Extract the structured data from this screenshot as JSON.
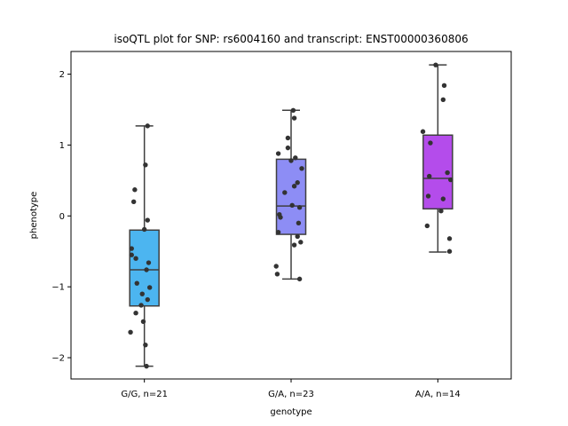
{
  "chart_data": {
    "type": "box",
    "title": "isoQTL plot for SNP: rs6004160 and transcript: ENST00000360806",
    "xlabel": "genotype",
    "ylabel": "phenotype",
    "ylim": [
      -2.3,
      2.32
    ],
    "yticks": [
      -2,
      -1,
      0,
      1,
      2
    ],
    "yticklabels": [
      "−2",
      "−1",
      "0",
      "1",
      "2"
    ],
    "grid": false,
    "categories": [
      "G/G, n=21",
      "G/A, n=23",
      "A/A, n=14"
    ],
    "colors": [
      "#4cb5f0",
      "#8d8df5",
      "#b44ceb"
    ],
    "boxes": [
      {
        "q1": -1.27,
        "median": -0.76,
        "q3": -0.2,
        "whisker_low": -2.12,
        "whisker_high": 1.27
      },
      {
        "q1": -0.26,
        "median": 0.14,
        "q3": 0.8,
        "whisker_low": -0.89,
        "whisker_high": 1.49
      },
      {
        "q1": 0.1,
        "median": 0.53,
        "q3": 1.14,
        "whisker_low": -0.51,
        "whisker_high": 2.13
      }
    ],
    "points": [
      [
        [
          0.03,
          1.27
        ],
        [
          0.01,
          0.72
        ],
        [
          -0.09,
          0.37
        ],
        [
          -0.1,
          0.2
        ],
        [
          0.03,
          -0.06
        ],
        [
          0.0,
          -0.19
        ],
        [
          -0.12,
          -0.46
        ],
        [
          -0.12,
          -0.55
        ],
        [
          -0.08,
          -0.6
        ],
        [
          0.04,
          -0.66
        ],
        [
          0.05,
          -1.01
        ],
        [
          0.02,
          -0.76
        ],
        [
          -0.07,
          -0.95
        ],
        [
          -0.02,
          -1.1
        ],
        [
          0.03,
          -1.18
        ],
        [
          -0.03,
          -1.26
        ],
        [
          -0.08,
          -1.37
        ],
        [
          -0.01,
          -1.49
        ],
        [
          -0.13,
          -1.64
        ],
        [
          0.01,
          -1.82
        ],
        [
          0.02,
          -2.12
        ]
      ],
      [
        [
          0.02,
          1.49
        ],
        [
          0.03,
          1.38
        ],
        [
          -0.03,
          1.1
        ],
        [
          -0.03,
          0.96
        ],
        [
          -0.12,
          0.88
        ],
        [
          0.04,
          0.82
        ],
        [
          0.0,
          0.78
        ],
        [
          0.1,
          0.67
        ],
        [
          0.06,
          0.47
        ],
        [
          0.03,
          0.42
        ],
        [
          -0.06,
          0.33
        ],
        [
          0.01,
          0.15
        ],
        [
          0.08,
          0.12
        ],
        [
          -0.11,
          0.02
        ],
        [
          -0.1,
          -0.02
        ],
        [
          0.07,
          -0.1
        ],
        [
          -0.12,
          -0.23
        ],
        [
          0.06,
          -0.29
        ],
        [
          0.09,
          -0.37
        ],
        [
          0.03,
          -0.41
        ],
        [
          -0.14,
          -0.71
        ],
        [
          -0.13,
          -0.82
        ],
        [
          0.08,
          -0.89
        ]
      ],
      [
        [
          -0.02,
          2.13
        ],
        [
          0.06,
          1.84
        ],
        [
          0.05,
          1.64
        ],
        [
          -0.14,
          1.19
        ],
        [
          -0.07,
          1.03
        ],
        [
          0.09,
          0.61
        ],
        [
          -0.08,
          0.56
        ],
        [
          0.12,
          0.51
        ],
        [
          -0.09,
          0.28
        ],
        [
          0.05,
          0.24
        ],
        [
          0.03,
          0.07
        ],
        [
          -0.1,
          -0.14
        ],
        [
          0.11,
          -0.32
        ],
        [
          0.11,
          -0.5
        ]
      ]
    ]
  }
}
